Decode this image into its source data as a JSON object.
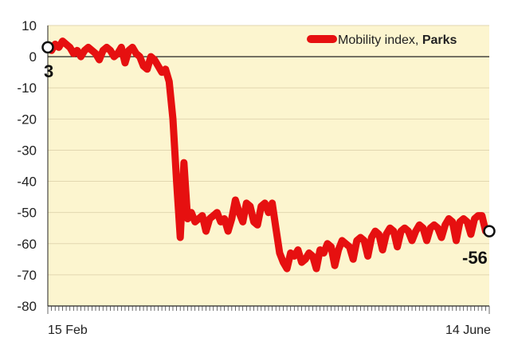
{
  "chart_data": {
    "type": "line",
    "title": "",
    "xlabel": "",
    "ylabel": "",
    "legend": {
      "label": "Mobility index, ",
      "label_bold": "Parks",
      "placement": "top-right"
    },
    "x_tick_labels": {
      "start": "15 Feb",
      "end": "14 June"
    },
    "ylim": [
      -80,
      10
    ],
    "yticks": [
      10,
      0,
      -10,
      -20,
      -30,
      -40,
      -50,
      -60,
      -70,
      -80
    ],
    "grid": {
      "horizontal": true,
      "vertical": false
    },
    "colors": {
      "line": "#e61010",
      "plot_background": "#fcf5cf",
      "grid": "#e2d7b0"
    },
    "annotations": {
      "start_value": "3",
      "end_value": "-56"
    },
    "series": [
      {
        "x": [
          "2020-02-15",
          "2020-02-16",
          "2020-02-17",
          "2020-02-18",
          "2020-02-19",
          "2020-02-20",
          "2020-02-21",
          "2020-02-22",
          "2020-02-23",
          "2020-02-24",
          "2020-02-25",
          "2020-02-26",
          "2020-02-27",
          "2020-02-28",
          "2020-02-29",
          "2020-03-01",
          "2020-03-02",
          "2020-03-03",
          "2020-03-04",
          "2020-03-05",
          "2020-03-06",
          "2020-03-07",
          "2020-03-08",
          "2020-03-09",
          "2020-03-10",
          "2020-03-11",
          "2020-03-12",
          "2020-03-13",
          "2020-03-14",
          "2020-03-15",
          "2020-03-16",
          "2020-03-17",
          "2020-03-18",
          "2020-03-19",
          "2020-03-20",
          "2020-03-21",
          "2020-03-22",
          "2020-03-23",
          "2020-03-24",
          "2020-03-25",
          "2020-03-26",
          "2020-03-27",
          "2020-03-28",
          "2020-03-29",
          "2020-03-30",
          "2020-03-31",
          "2020-04-01",
          "2020-04-02",
          "2020-04-03",
          "2020-04-04",
          "2020-04-05",
          "2020-04-06",
          "2020-04-07",
          "2020-04-08",
          "2020-04-09",
          "2020-04-10",
          "2020-04-11",
          "2020-04-12",
          "2020-04-13",
          "2020-04-14",
          "2020-04-15",
          "2020-04-16",
          "2020-04-17",
          "2020-04-18",
          "2020-04-19",
          "2020-04-20",
          "2020-04-21",
          "2020-04-22",
          "2020-04-23",
          "2020-04-24",
          "2020-04-25",
          "2020-04-26",
          "2020-04-27",
          "2020-04-28",
          "2020-04-29",
          "2020-04-30",
          "2020-05-01",
          "2020-05-02",
          "2020-05-03",
          "2020-05-04",
          "2020-05-05",
          "2020-05-06",
          "2020-05-07",
          "2020-05-08",
          "2020-05-09",
          "2020-05-10",
          "2020-05-11",
          "2020-05-12",
          "2020-05-13",
          "2020-05-14",
          "2020-05-15",
          "2020-05-16",
          "2020-05-17",
          "2020-05-18",
          "2020-05-19",
          "2020-05-20",
          "2020-05-21",
          "2020-05-22",
          "2020-05-23",
          "2020-05-24",
          "2020-05-25",
          "2020-05-26",
          "2020-05-27",
          "2020-05-28",
          "2020-05-29",
          "2020-05-30",
          "2020-05-31",
          "2020-06-01",
          "2020-06-02",
          "2020-06-03",
          "2020-06-04",
          "2020-06-05",
          "2020-06-06",
          "2020-06-07",
          "2020-06-08",
          "2020-06-09",
          "2020-06-10",
          "2020-06-11",
          "2020-06-12",
          "2020-06-13",
          "2020-06-14"
        ],
        "y": [
          3,
          2,
          4,
          3,
          5,
          4,
          3,
          1,
          2,
          0,
          2,
          3,
          2,
          1,
          -1,
          2,
          3,
          2,
          0,
          1,
          3,
          -2,
          2,
          3,
          1,
          0,
          -3,
          -4,
          0,
          -1,
          -3,
          -5,
          -4,
          -8,
          -20,
          -40,
          -58,
          -34,
          -52,
          -50,
          -53,
          -52,
          -51,
          -56,
          -52,
          -51,
          -50,
          -53,
          -52,
          -56,
          -52,
          -46,
          -50,
          -53,
          -47,
          -48,
          -53,
          -54,
          -48,
          -47,
          -50,
          -47,
          -55,
          -63,
          -66,
          -68,
          -63,
          -64,
          -62,
          -66,
          -65,
          -63,
          -64,
          -68,
          -62,
          -63,
          -60,
          -61,
          -67,
          -62,
          -59,
          -60,
          -61,
          -65,
          -59,
          -58,
          -59,
          -64,
          -58,
          -56,
          -57,
          -62,
          -57,
          -55,
          -56,
          -61,
          -56,
          -55,
          -56,
          -59,
          -56,
          -54,
          -55,
          -59,
          -55,
          -54,
          -55,
          -58,
          -54,
          -52,
          -53,
          -59,
          -53,
          -52,
          -53,
          -57,
          -52,
          -51,
          -51,
          -56,
          -56
        ]
      }
    ]
  }
}
